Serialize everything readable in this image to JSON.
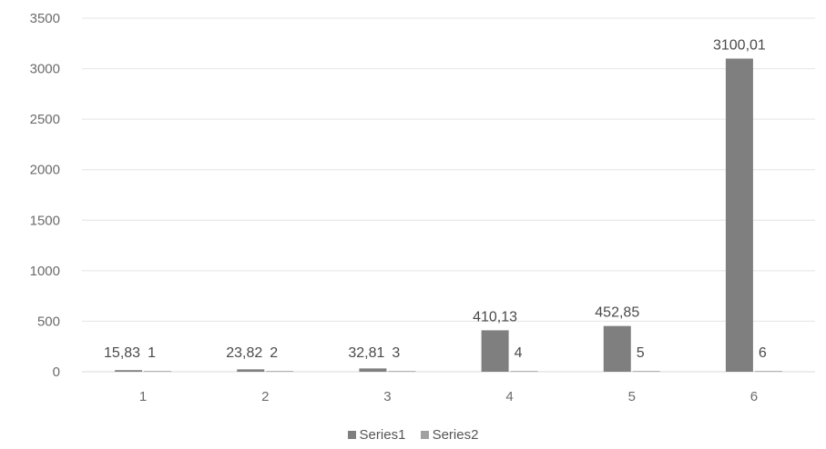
{
  "chart_data": {
    "type": "bar",
    "categories": [
      "1",
      "2",
      "3",
      "4",
      "5",
      "6"
    ],
    "series": [
      {
        "name": "Series1",
        "values": [
          15.83,
          23.82,
          32.81,
          410.13,
          452.85,
          3100.01
        ],
        "labels": [
          "15,83",
          "23,82",
          "32,81",
          "410,13",
          "452,85",
          "3100,01"
        ],
        "color": "#7f7f7f"
      },
      {
        "name": "Series2",
        "values": [
          1,
          2,
          3,
          4,
          5,
          6
        ],
        "labels": [
          "1",
          "2",
          "3",
          "4",
          "5",
          "6"
        ],
        "color": "#a0a0a0"
      }
    ],
    "ylim": [
      0,
      3500
    ],
    "yticks": [
      0,
      500,
      1000,
      1500,
      2000,
      2500,
      3000,
      3500
    ],
    "grid": true,
    "legend_position": "bottom"
  }
}
